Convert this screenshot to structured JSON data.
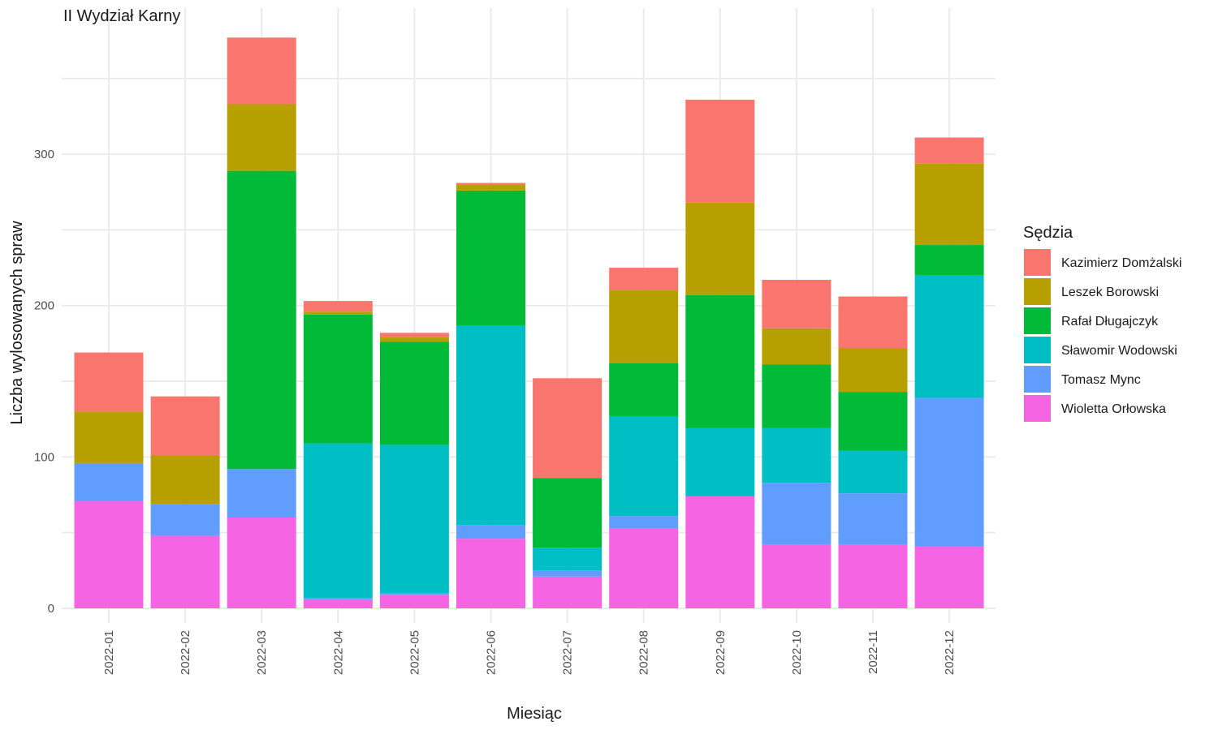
{
  "chart_data": {
    "type": "bar",
    "stacked": true,
    "title": "II Wydział Karny",
    "xlabel": "Miesiąc",
    "ylabel": "Liczba wylosowanych spraw",
    "ylim": [
      0,
      380
    ],
    "yticks": [
      0,
      100,
      200,
      300
    ],
    "grid": true,
    "legend_title": "Sędzia",
    "legend_position": "right",
    "categories": [
      "2022-01",
      "2022-02",
      "2022-03",
      "2022-04",
      "2022-05",
      "2022-06",
      "2022-07",
      "2022-08",
      "2022-09",
      "2022-10",
      "2022-11",
      "2022-12"
    ],
    "series": [
      {
        "name": "Wioletta Orłowska",
        "color": "#F564E3",
        "values": [
          71,
          48,
          60,
          6,
          9,
          46,
          21,
          53,
          74,
          42,
          42,
          41
        ]
      },
      {
        "name": "Tomasz Mync",
        "color": "#619CFF",
        "values": [
          25,
          21,
          32,
          1,
          1,
          9,
          4,
          8,
          0,
          41,
          34,
          98
        ]
      },
      {
        "name": "Sławomir Wodowski",
        "color": "#00BFC4",
        "values": [
          0,
          0,
          0,
          102,
          98,
          132,
          15,
          66,
          45,
          36,
          28,
          81
        ]
      },
      {
        "name": "Rafał Długajczyk",
        "color": "#00BA38",
        "values": [
          0,
          0,
          197,
          85,
          68,
          89,
          46,
          35,
          88,
          42,
          39,
          20
        ]
      },
      {
        "name": "Leszek Borowski",
        "color": "#B79F00",
        "values": [
          34,
          32,
          44,
          2,
          3,
          4,
          0,
          48,
          61,
          24,
          29,
          54
        ]
      },
      {
        "name": "Kazimierz Domżalski",
        "color": "#F8766D",
        "values": [
          39,
          39,
          44,
          7,
          3,
          1,
          66,
          15,
          68,
          32,
          34,
          17
        ]
      }
    ]
  }
}
